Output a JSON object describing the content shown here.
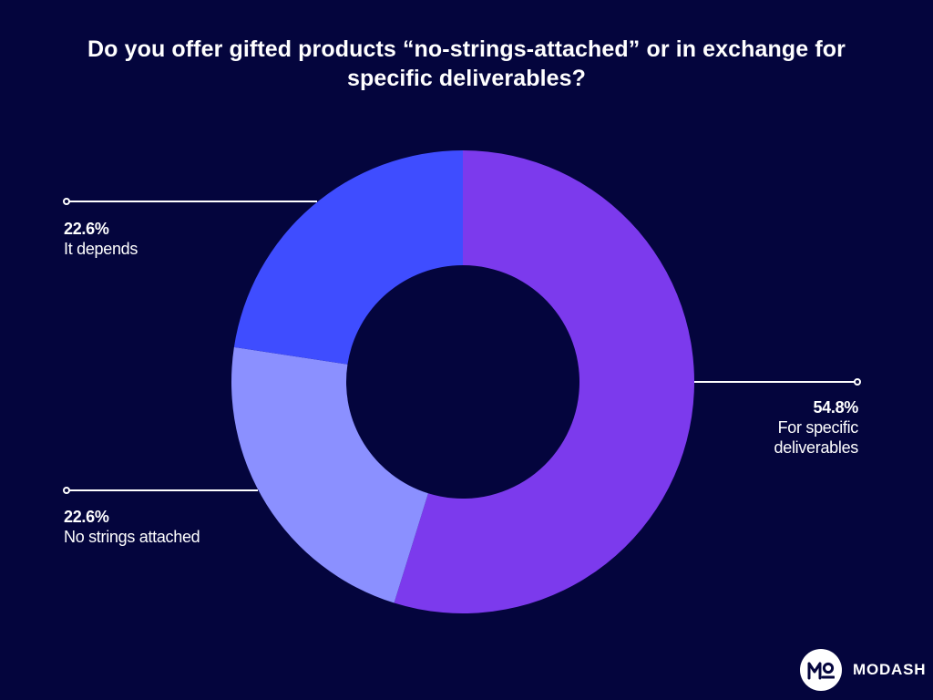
{
  "chart_data": {
    "type": "donut",
    "title": "Do you offer gifted products “no-strings-attached” or in exchange for specific deliverables?",
    "slices": [
      {
        "label": "For specific deliverables",
        "value": 54.8,
        "value_label": "54.8%",
        "color": "#7c3aed",
        "label_lines": [
          "For specific",
          "deliverables"
        ]
      },
      {
        "label": "No strings attached",
        "value": 22.6,
        "value_label": "22.6%",
        "color": "#8b90ff",
        "label_lines": [
          "No strings attached"
        ]
      },
      {
        "label": "It depends",
        "value": 22.6,
        "value_label": "22.6%",
        "color": "#3f4dff",
        "label_lines": [
          "It depends"
        ]
      }
    ],
    "start_angle": "top",
    "direction": "clockwise"
  },
  "brand": {
    "name": "MODASH",
    "logo_text": "MO"
  },
  "colors": {
    "background": "#04053d",
    "text": "#ffffff"
  }
}
